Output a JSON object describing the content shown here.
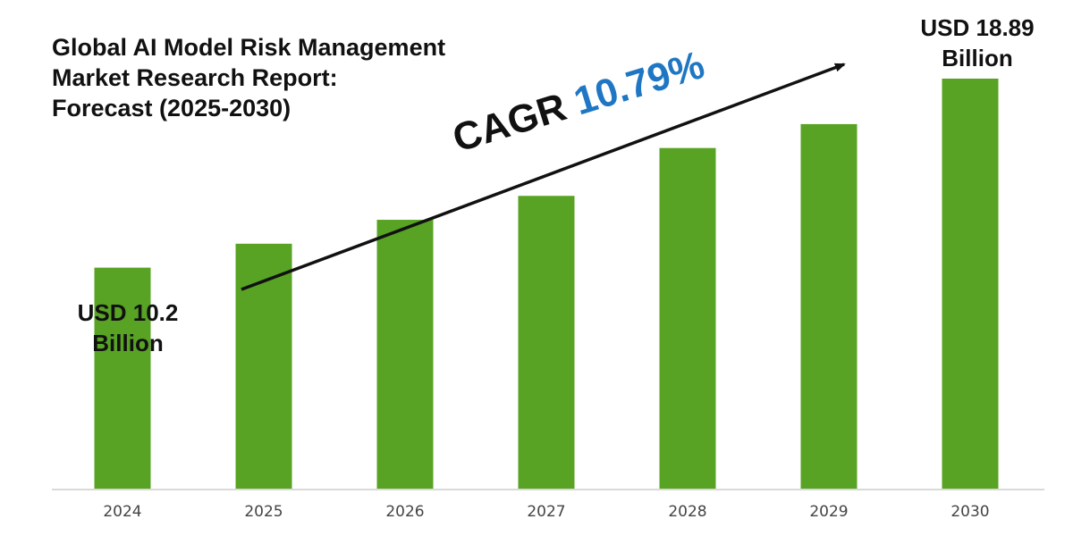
{
  "title_lines": [
    "Global AI Model Risk Management",
    "Market Research Report:",
    "Forecast (2025-2030)"
  ],
  "cagr": {
    "prefix": "CAGR",
    "value": "10.79%"
  },
  "callouts": {
    "start": {
      "line1": "USD 10.2",
      "line2": "Billion"
    },
    "end": {
      "line1": "USD 18.89",
      "line2": "Billion"
    }
  },
  "colors": {
    "bar": "#58a323",
    "cagr_value": "#1f77c4",
    "text": "#111111",
    "axis_label": "#444444",
    "baseline": "#d9d9d9"
  },
  "chart_data": {
    "type": "bar",
    "categories": [
      "2024",
      "2025",
      "2026",
      "2027",
      "2028",
      "2029",
      "2030"
    ],
    "values": [
      10.2,
      11.3,
      12.4,
      13.5,
      15.7,
      16.8,
      18.89
    ],
    "ylim": [
      0,
      20
    ],
    "annotations": [
      "USD 10.2 Billion",
      "USD 18.89 Billion",
      "CAGR 10.79%"
    ],
    "grid": false,
    "legend": "none"
  }
}
